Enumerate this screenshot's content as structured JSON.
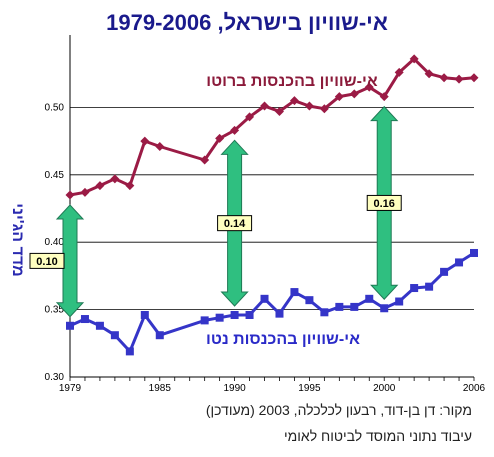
{
  "chart_data": {
    "type": "line",
    "title": "אי-שוויון בישראל, 1979-2006",
    "ylabel": "מדד הג'יני",
    "xlim": [
      1979,
      2006
    ],
    "ylim": [
      0.3,
      0.55
    ],
    "yticks": [
      "0.30",
      "0.35",
      "0.40",
      "0.45",
      "0.50"
    ],
    "xticks": [
      "1979",
      "1985",
      "1990",
      "1995",
      "2000",
      "2006"
    ],
    "grid": true,
    "series": [
      {
        "name": "אי-שוויון בהכנסות ברוטו",
        "color": "#9b1b45",
        "x": [
          1979,
          1980,
          1981,
          1982,
          1983,
          1984,
          1985,
          1988,
          1989,
          1990,
          1991,
          1992,
          1993,
          1994,
          1995,
          1996,
          1997,
          1998,
          1999,
          2000,
          2001,
          2002,
          2003,
          2004,
          2005,
          2006
        ],
        "values": [
          0.435,
          0.437,
          0.442,
          0.447,
          0.442,
          0.475,
          0.471,
          0.461,
          0.477,
          0.483,
          0.493,
          0.501,
          0.497,
          0.505,
          0.501,
          0.499,
          0.508,
          0.51,
          0.515,
          0.508,
          0.526,
          0.536,
          0.525,
          0.522,
          0.521,
          0.522
        ]
      },
      {
        "name": "אי-שוויון בהכנסות נטו",
        "color": "#3535c8",
        "x": [
          1979,
          1980,
          1981,
          1982,
          1983,
          1984,
          1985,
          1988,
          1989,
          1990,
          1991,
          1992,
          1993,
          1994,
          1995,
          1996,
          1997,
          1998,
          1999,
          2000,
          2001,
          2002,
          2003,
          2004,
          2005,
          2006
        ],
        "values": [
          0.338,
          0.343,
          0.338,
          0.331,
          0.319,
          0.346,
          0.331,
          0.342,
          0.344,
          0.346,
          0.346,
          0.358,
          0.347,
          0.363,
          0.357,
          0.348,
          0.352,
          0.352,
          0.358,
          0.351,
          0.356,
          0.366,
          0.367,
          0.378,
          0.385,
          0.392
        ]
      }
    ],
    "gaps": [
      {
        "x": 1979,
        "label": "0.10"
      },
      {
        "x": 1990,
        "label": "0.14"
      },
      {
        "x": 2000,
        "label": "0.16"
      }
    ]
  },
  "source_lines": [
    "מקור: דן בן-דוד, רבעון לכלכלה, 2003 (מעודכן)",
    "עיבוד נתוני המוסד לביטוח לאומי"
  ]
}
